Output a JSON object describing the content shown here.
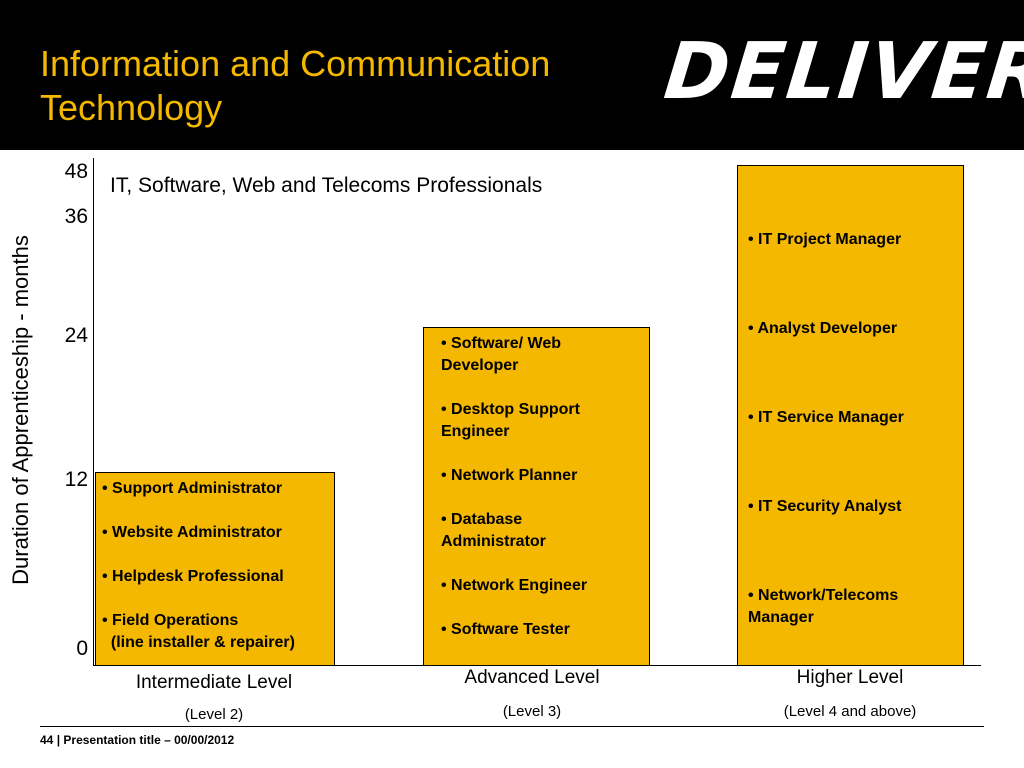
{
  "header": {
    "title_line1": "Information and Communication",
    "title_line2": "Technology",
    "logo_text": "DELIVER"
  },
  "chart_data": {
    "type": "bar",
    "title": "IT, Software, Web and Telecoms Professionals",
    "ylabel": "Duration of Apprenticeship - months",
    "yticks": [
      "0",
      "12",
      "24",
      "36",
      "48"
    ],
    "categories": [
      "Intermediate Level",
      "Advanced Level",
      "Higher Level"
    ],
    "subcategories": [
      "(Level 2)",
      "(Level 3)",
      "(Level 4 and above)"
    ],
    "values": [
      12,
      24,
      48
    ],
    "bar_items": [
      [
        "• Support Administrator",
        "• Website Administrator",
        "• Helpdesk Professional",
        "• Field Operations\n  (line installer & repairer)"
      ],
      [
        "• Software/ Web\nDeveloper",
        "• Desktop Support\nEngineer",
        "• Network Planner",
        "• Database\nAdministrator",
        "• Network Engineer",
        "• Software Tester"
      ],
      [
        "• IT Project Manager",
        "• Analyst Developer",
        "• IT Service Manager",
        "• IT Security Analyst",
        "• Network/Telecoms\nManager"
      ]
    ],
    "bar_color": "#f5b800"
  },
  "footer": {
    "page_number": "44",
    "separator": " | ",
    "text": "Presentation title – 00/00/2012"
  }
}
